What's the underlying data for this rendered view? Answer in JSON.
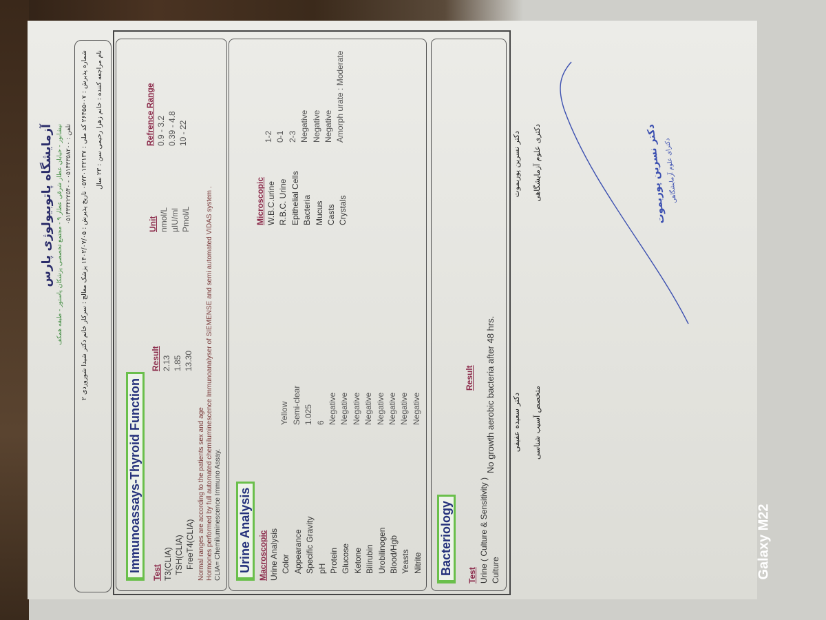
{
  "header": {
    "lab_name": "آزمایشگاه پاتوبیولوژی پارس",
    "address": "نیشابور - خیابان عطار شرقی عطار ۹ - مجتمع تخصصی پزشکان پاستور - طبقه همکف",
    "phone": "تلفن : ۰۵۱۴۳۳۵۸۲۰۰ - ۰۵۱۴۳۳۲۲۲۵۴۰",
    "line1": "شماره پذیرش : ۰۷-۲۶۴۵۵    کد ملی : ۰۵۷۳۰۱۳۲۱۳۷    تاریخ پذیرش : ۱۴۰۲/۰۷/۰۵    پزشک معالج : سرکار خانم دکتر شیدا شوروردی    ۲",
    "line2": "نام مراجعه کننده : خانم زهرا رحیمی    سن : ۲۳ سال"
  },
  "thyroid": {
    "title": "Immunoassays-Thyroid Function",
    "columns": [
      "Test",
      "Result",
      "Unit",
      "Refrence Range"
    ],
    "rows": [
      {
        "test": "T3(CLIA)",
        "result": "2.13",
        "unit": "nmol/L",
        "range": "0.9 - 3.2"
      },
      {
        "test": "TSH(CLIA)",
        "result": "1.85",
        "unit": "µIU/ml",
        "range": "0.39 - 4.8"
      },
      {
        "test": "FreeT4(CLIA)",
        "result": "13.30",
        "unit": "Pmol/L",
        "range": "10 - 22"
      }
    ],
    "notes": [
      "Normal ranges are according to the patients sex and age",
      "Hormones performed by full automated chemiluminescence Immunoanalyser of SIEMENSE and semi automated VIDAS system .",
      "CLIA= Chemiluminescence Immuno Assay."
    ]
  },
  "urine": {
    "title": "Urine Analysis",
    "macro_header": "Macroscopic",
    "micro_header": "Microscopic",
    "macro": [
      {
        "label": "Urine Analysis",
        "value": ""
      },
      {
        "label": "Color",
        "value": "Yellow"
      },
      {
        "label": "Appearance",
        "value": "Semi-clear"
      },
      {
        "label": "Specific Gravity",
        "value": "1.025"
      },
      {
        "label": "pH",
        "value": "6"
      },
      {
        "label": "Protein",
        "value": "Negative"
      },
      {
        "label": "Glucose",
        "value": "Negative"
      },
      {
        "label": "Ketone",
        "value": "Negative"
      },
      {
        "label": "Bilirubin",
        "value": "Negative"
      },
      {
        "label": "Urobilinogen",
        "value": "Negative"
      },
      {
        "label": "Blood/Hgb",
        "value": "Negative"
      },
      {
        "label": "Yeasts",
        "value": "Negative"
      },
      {
        "label": "Nitrite",
        "value": "Negative"
      }
    ],
    "micro": [
      {
        "label": "W.B.C.urine",
        "value": "1-2"
      },
      {
        "label": "R.B.C. Urine",
        "value": "0-1"
      },
      {
        "label": "Epithelial Cells",
        "value": "2-3"
      },
      {
        "label": "Bacteria",
        "value": "Negative"
      },
      {
        "label": "Mucus",
        "value": "Negative"
      },
      {
        "label": "Casts",
        "value": "Negative"
      },
      {
        "label": "Crystals",
        "value": "Amorph urate : Moderate"
      }
    ]
  },
  "bacteriology": {
    "title": "Bacteriology",
    "test_header": "Test",
    "result_header": "Result",
    "test_name": "Urine ( Culture & Sensitivity )",
    "culture_label": "Culture",
    "culture_result": "No growth aerobic  bacteria  after  48   hrs."
  },
  "signatures": {
    "left_name": "دکتر سعیده عفیفی",
    "left_title": "متخصص آسیب شناسی",
    "right_name": "دکتر نسرین پوربموت",
    "right_title": "دکتری علوم آزمایشگاهی",
    "stamp_name": "دکتر نسرین پوربموت",
    "stamp_title": "دکترای علوم آزمایشگاهی",
    "stamp_color": "#3b4fb0"
  },
  "watermark": "Galaxy M22"
}
